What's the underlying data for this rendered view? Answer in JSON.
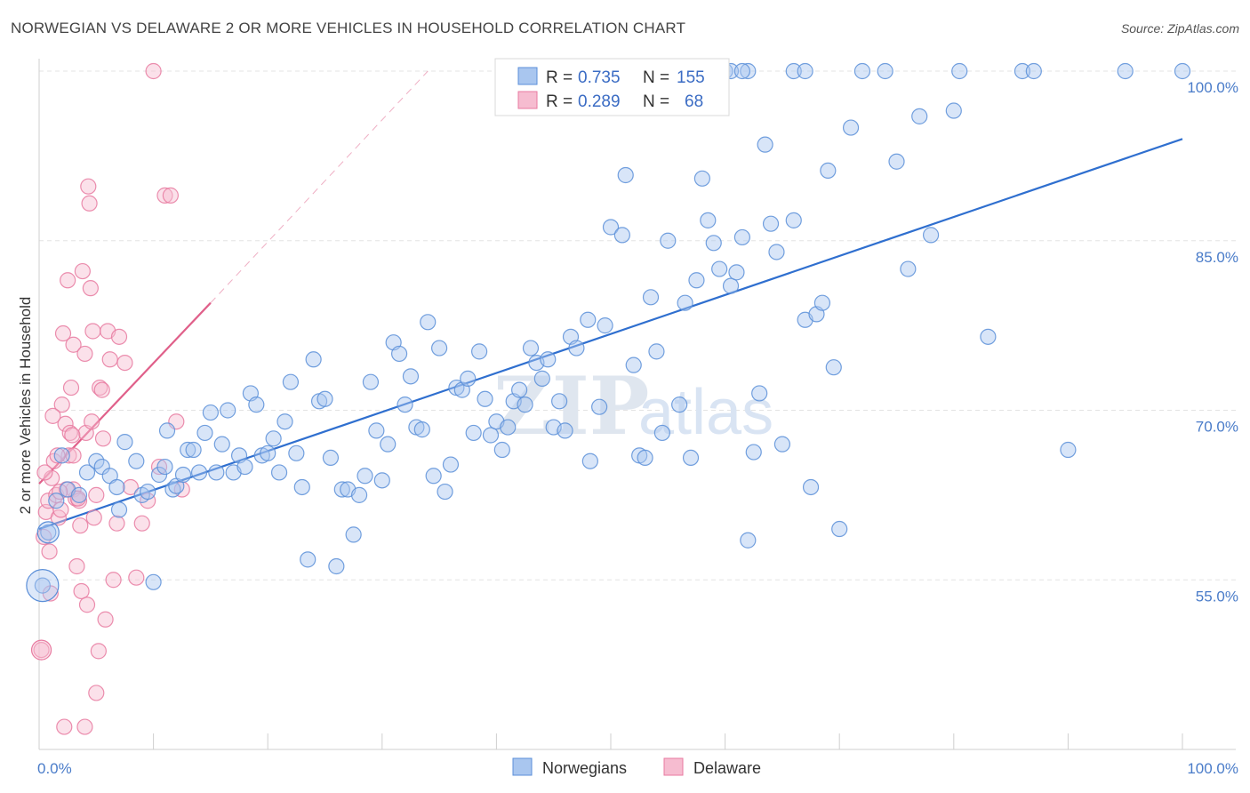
{
  "title": "NORWEGIAN VS DELAWARE 2 OR MORE VEHICLES IN HOUSEHOLD CORRELATION CHART",
  "source": "Source: ZipAtlas.com",
  "watermark": {
    "zip": "ZIP",
    "atlas": "atlas"
  },
  "colors": {
    "blue": "#5b8fd8",
    "blue_fill": "#a9c6ef",
    "blue_line": "#2f6fcf",
    "pink": "#e87aa0",
    "pink_fill": "#f6bcd0",
    "pink_line": "#e0608a"
  },
  "legend": {
    "rows": [
      {
        "r_label": "R = ",
        "r_value": "0.735",
        "n_label": "N = ",
        "n_value": "155"
      },
      {
        "r_label": "R = ",
        "r_value": "0.289",
        "n_label": "N = ",
        "n_value": "68"
      }
    ]
  },
  "chart_data": {
    "type": "scatter",
    "title": "NORWEGIAN VS DELAWARE 2 OR MORE VEHICLES IN HOUSEHOLD CORRELATION CHART",
    "xlabel": "",
    "ylabel": "2 or more Vehicles in Household",
    "xlim": [
      0,
      100
    ],
    "ylim": [
      40,
      100
    ],
    "x_tick_labels": [
      "0.0%",
      "100.0%"
    ],
    "y_ticks": [
      55,
      70,
      85,
      100
    ],
    "y_tick_labels": [
      "55.0%",
      "70.0%",
      "85.0%",
      "100.0%"
    ],
    "grid": true,
    "legend_position": "bottom",
    "series": [
      {
        "name": "Norwegians",
        "color": "#5b8fd8",
        "trend": [
          [
            0,
            59.5
          ],
          [
            100,
            94
          ]
        ],
        "points": [
          [
            0.3,
            54.5
          ],
          [
            0.8,
            59.2
          ],
          [
            1.5,
            62
          ],
          [
            2,
            66
          ],
          [
            2.5,
            63
          ],
          [
            3.5,
            62.5
          ],
          [
            4.2,
            64.5
          ],
          [
            5,
            65.5
          ],
          [
            5.5,
            65
          ],
          [
            6.2,
            64.2
          ],
          [
            6.8,
            63.2
          ],
          [
            7,
            61.2
          ],
          [
            7.5,
            67.2
          ],
          [
            8.5,
            65.5
          ],
          [
            9,
            62.5
          ],
          [
            9.5,
            62.8
          ],
          [
            10,
            54.8
          ],
          [
            10.5,
            64.3
          ],
          [
            11,
            65
          ],
          [
            11.2,
            68.2
          ],
          [
            11.7,
            63
          ],
          [
            12,
            63.3
          ],
          [
            12.6,
            64.3
          ],
          [
            13,
            66.5
          ],
          [
            13.5,
            66.5
          ],
          [
            14,
            64.5
          ],
          [
            14.5,
            68
          ],
          [
            15,
            69.8
          ],
          [
            15.5,
            64.5
          ],
          [
            16,
            67
          ],
          [
            16.5,
            70
          ],
          [
            17,
            64.5
          ],
          [
            17.5,
            66
          ],
          [
            18,
            65
          ],
          [
            18.5,
            71.5
          ],
          [
            19,
            70.5
          ],
          [
            19.5,
            66
          ],
          [
            20,
            66.2
          ],
          [
            20.5,
            67.5
          ],
          [
            21,
            64.5
          ],
          [
            21.5,
            69
          ],
          [
            22,
            72.5
          ],
          [
            22.5,
            66.2
          ],
          [
            23,
            63.2
          ],
          [
            23.5,
            56.8
          ],
          [
            24,
            74.5
          ],
          [
            24.5,
            70.8
          ],
          [
            25,
            71
          ],
          [
            25.5,
            65.8
          ],
          [
            26,
            56.2
          ],
          [
            26.5,
            63
          ],
          [
            27,
            63
          ],
          [
            27.5,
            59
          ],
          [
            28,
            62.5
          ],
          [
            28.5,
            64.2
          ],
          [
            29,
            72.5
          ],
          [
            29.5,
            68.2
          ],
          [
            30,
            63.8
          ],
          [
            30.5,
            67
          ],
          [
            31,
            76
          ],
          [
            31.5,
            75
          ],
          [
            32,
            70.5
          ],
          [
            32.5,
            73
          ],
          [
            33,
            68.5
          ],
          [
            33.5,
            68.3
          ],
          [
            34,
            77.8
          ],
          [
            34.5,
            64.2
          ],
          [
            35,
            75.5
          ],
          [
            35.5,
            62.8
          ],
          [
            36,
            65.2
          ],
          [
            36.5,
            72
          ],
          [
            37,
            71.8
          ],
          [
            37.5,
            72.8
          ],
          [
            38,
            68
          ],
          [
            38.5,
            75.2
          ],
          [
            39,
            71
          ],
          [
            39.5,
            67.8
          ],
          [
            40,
            69
          ],
          [
            40.5,
            66.5
          ],
          [
            41,
            68.5
          ],
          [
            41.5,
            70.8
          ],
          [
            42,
            71.8
          ],
          [
            42.5,
            70.5
          ],
          [
            43,
            75.5
          ],
          [
            43.5,
            74.2
          ],
          [
            44,
            72.8
          ],
          [
            44.5,
            74.5
          ],
          [
            45,
            68.5
          ],
          [
            45.5,
            70.8
          ],
          [
            46,
            68.2
          ],
          [
            46.5,
            76.5
          ],
          [
            47,
            75.5
          ],
          [
            48,
            78
          ],
          [
            48.2,
            65.5
          ],
          [
            49,
            70.3
          ],
          [
            49.5,
            77.5
          ],
          [
            50,
            86.2
          ],
          [
            51,
            85.5
          ],
          [
            51.3,
            90.8
          ],
          [
            52,
            74
          ],
          [
            52.5,
            66
          ],
          [
            53,
            65.8
          ],
          [
            53.5,
            80
          ],
          [
            54,
            75.2
          ],
          [
            54.5,
            68
          ],
          [
            55,
            85
          ],
          [
            56,
            70.5
          ],
          [
            56.5,
            79.5
          ],
          [
            57,
            65.8
          ],
          [
            57.5,
            81.5
          ],
          [
            58,
            90.5
          ],
          [
            58.5,
            86.8
          ],
          [
            59,
            84.8
          ],
          [
            59.5,
            82.5
          ],
          [
            60.5,
            81
          ],
          [
            61,
            82.2
          ],
          [
            61.5,
            85.3
          ],
          [
            62,
            58.5
          ],
          [
            62.5,
            66.3
          ],
          [
            63,
            71.5
          ],
          [
            63.5,
            93.5
          ],
          [
            64,
            86.5
          ],
          [
            64.5,
            84
          ],
          [
            65,
            67
          ],
          [
            66,
            86.8
          ],
          [
            67,
            78
          ],
          [
            67.5,
            63.2
          ],
          [
            68,
            78.5
          ],
          [
            68.5,
            79.5
          ],
          [
            69,
            91.2
          ],
          [
            69.5,
            73.8
          ],
          [
            70,
            59.5
          ],
          [
            71,
            95
          ],
          [
            72,
            100
          ],
          [
            74,
            100
          ],
          [
            75,
            92
          ],
          [
            76,
            82.5
          ],
          [
            77,
            96
          ],
          [
            78,
            85.5
          ],
          [
            80,
            96.5
          ],
          [
            80.5,
            100
          ],
          [
            83,
            76.5
          ],
          [
            86,
            100
          ],
          [
            87,
            100
          ],
          [
            90,
            66.5
          ],
          [
            95,
            100
          ],
          [
            100,
            100
          ],
          [
            60,
            100
          ],
          [
            62,
            100
          ],
          [
            66,
            100
          ],
          [
            67,
            100
          ],
          [
            57.5,
            100
          ],
          [
            58,
            100
          ],
          [
            60.5,
            100
          ],
          [
            61.5,
            100
          ]
        ]
      },
      {
        "name": "Delaware",
        "color": "#e87aa0",
        "trend": [
          [
            0,
            63.5
          ],
          [
            15,
            79.5
          ]
        ],
        "trend_extension": [
          [
            15,
            79.5
          ],
          [
            34,
            100
          ]
        ],
        "points": [
          [
            0.2,
            48.8
          ],
          [
            0.4,
            58.8
          ],
          [
            0.6,
            61
          ],
          [
            0.8,
            62
          ],
          [
            1,
            53.8
          ],
          [
            1.1,
            64
          ],
          [
            1.3,
            65.5
          ],
          [
            1.5,
            62.5
          ],
          [
            1.7,
            60.5
          ],
          [
            1.9,
            61.2
          ],
          [
            2,
            70.5
          ],
          [
            2.1,
            76.8
          ],
          [
            2.3,
            68.8
          ],
          [
            2.5,
            81.5
          ],
          [
            2.6,
            66
          ],
          [
            2.7,
            68
          ],
          [
            2.8,
            72
          ],
          [
            3,
            63
          ],
          [
            3,
            75.8
          ],
          [
            3.2,
            62.2
          ],
          [
            3.3,
            56.2
          ],
          [
            3.5,
            62
          ],
          [
            3.6,
            59.8
          ],
          [
            3.7,
            54
          ],
          [
            3.8,
            82.3
          ],
          [
            4,
            75
          ],
          [
            4.1,
            68
          ],
          [
            4.2,
            52.8
          ],
          [
            4.3,
            89.8
          ],
          [
            4.4,
            88.3
          ],
          [
            4.5,
            80.8
          ],
          [
            4.6,
            69
          ],
          [
            4.7,
            77
          ],
          [
            4.8,
            60.5
          ],
          [
            5,
            62.5
          ],
          [
            5.2,
            48.7
          ],
          [
            5.3,
            72
          ],
          [
            5.5,
            71.8
          ],
          [
            5.6,
            67.5
          ],
          [
            5.8,
            51.5
          ],
          [
            6,
            77
          ],
          [
            6.2,
            74.5
          ],
          [
            6.5,
            55
          ],
          [
            6.8,
            60
          ],
          [
            7,
            76.5
          ],
          [
            7.5,
            74.2
          ],
          [
            8,
            63.2
          ],
          [
            8.5,
            55.2
          ],
          [
            9,
            60
          ],
          [
            9.5,
            62
          ],
          [
            10,
            100
          ],
          [
            10.5,
            65
          ],
          [
            11,
            89
          ],
          [
            11.5,
            89
          ],
          [
            12,
            69
          ],
          [
            12.5,
            63
          ],
          [
            2.2,
            42
          ],
          [
            4,
            42
          ],
          [
            5,
            45
          ],
          [
            3,
            66
          ],
          [
            1.6,
            66
          ],
          [
            2.4,
            63
          ],
          [
            0.5,
            64.5
          ],
          [
            1.2,
            69.5
          ],
          [
            2.9,
            67.8
          ],
          [
            3.4,
            62.2
          ],
          [
            1.8,
            62.8
          ],
          [
            0.9,
            57.5
          ]
        ]
      }
    ]
  }
}
